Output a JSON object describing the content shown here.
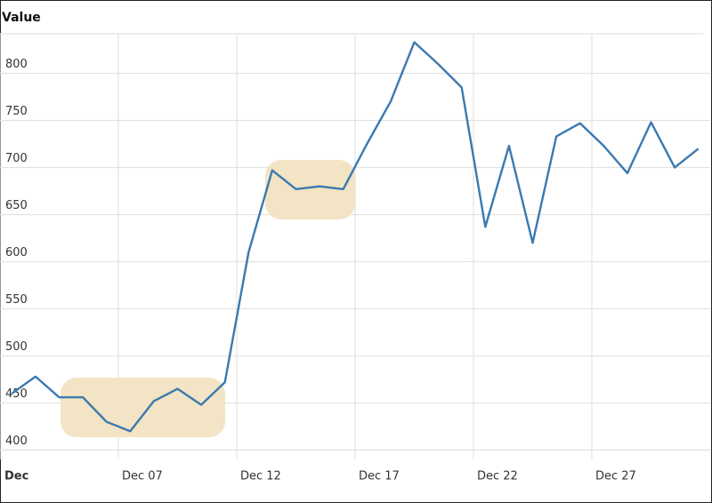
{
  "chart_data": {
    "type": "line",
    "y_label": "Value",
    "x": [
      2.5,
      3.5,
      4.5,
      5.5,
      6.5,
      7.5,
      8.5,
      9.5,
      10.5,
      11.5,
      12.5,
      13.5,
      14.5,
      15.5,
      16.5,
      17.5,
      18.5,
      19.5,
      20.5,
      21.5,
      22.5,
      23.5,
      24.5,
      25.5,
      26.5,
      27.5,
      28.5,
      29.5,
      30.5,
      31.5
    ],
    "series": [
      {
        "color": "#3b79b0",
        "values": [
          460,
          478,
          456,
          456,
          430,
          420,
          452,
          465,
          448,
          472,
          610,
          697,
          677,
          680,
          677,
          725,
          770,
          833,
          810,
          785,
          637,
          723,
          620,
          733,
          747,
          723,
          694,
          748,
          700,
          720
        ]
      }
    ],
    "xlim": [
      2,
      32
    ],
    "xticks": [
      {
        "value": 2,
        "label": "Dec"
      },
      {
        "value": 7,
        "label": "Dec 07"
      },
      {
        "value": 12,
        "label": "Dec 12"
      },
      {
        "value": 17,
        "label": "Dec 17"
      },
      {
        "value": 22,
        "label": "Dec 22"
      },
      {
        "value": 27,
        "label": "Dec 27"
      }
    ],
    "ylim": [
      390,
      842
    ],
    "yticks": [
      400,
      450,
      500,
      550,
      600,
      650,
      700,
      750,
      800
    ],
    "grid": true
  }
}
